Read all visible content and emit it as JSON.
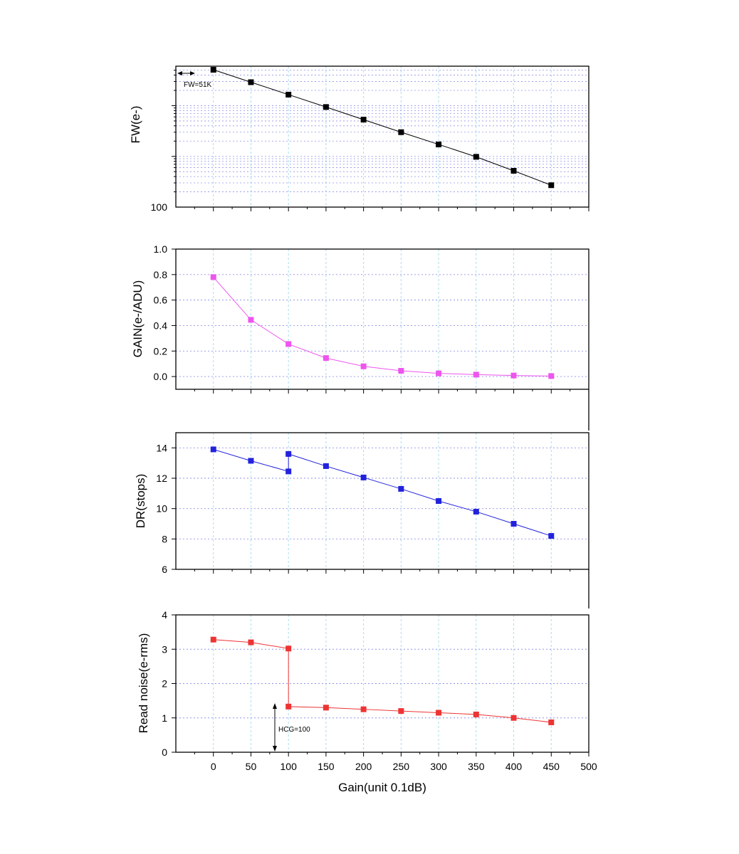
{
  "chart_data": [
    {
      "type": "line",
      "panel": "fw",
      "ylabel": "FW(e-)",
      "yscale": "log",
      "ylim": [
        100,
        60000
      ],
      "ytick_labels": [
        {
          "value": 100,
          "label": "100"
        }
      ],
      "grid": true,
      "color": "#000000",
      "x": [
        0,
        50,
        100,
        150,
        200,
        250,
        300,
        350,
        400,
        450
      ],
      "values": [
        51000,
        29000,
        16500,
        9400,
        5300,
        3000,
        1720,
        980,
        520,
        270
      ],
      "annotation": {
        "text": "FW=51K",
        "x": 0,
        "y": 51000
      }
    },
    {
      "type": "line",
      "panel": "gain",
      "ylabel": "GAIN(e-/ADU)",
      "ylim": [
        -0.1,
        1.0
      ],
      "yticks": [
        0.0,
        0.2,
        0.4,
        0.6,
        0.8,
        1.0
      ],
      "ytick_labels": [
        "0.0",
        "0.2",
        "0.4",
        "0.6",
        "0.8",
        "1.0"
      ],
      "grid": true,
      "color": "#ee55ee",
      "x": [
        0,
        50,
        100,
        150,
        200,
        250,
        300,
        350,
        400,
        450
      ],
      "values": [
        0.78,
        0.445,
        0.255,
        0.145,
        0.08,
        0.045,
        0.025,
        0.015,
        0.008,
        0.004
      ]
    },
    {
      "type": "line",
      "panel": "dr",
      "ylabel": "DR(stops)",
      "ylim": [
        6,
        15
      ],
      "yticks": [
        6,
        8,
        10,
        12,
        14
      ],
      "ytick_labels": [
        "6",
        "8",
        "10",
        "12",
        "14"
      ],
      "grid": true,
      "color": "#2222dd",
      "x": [
        0,
        50,
        100,
        100,
        150,
        200,
        250,
        300,
        350,
        400,
        450
      ],
      "values": [
        13.9,
        13.15,
        12.45,
        13.6,
        12.8,
        12.05,
        11.3,
        10.5,
        9.8,
        9.0,
        8.2
      ]
    },
    {
      "type": "line",
      "panel": "read_noise",
      "ylabel": "Read noise(e-rms)",
      "ylim": [
        0,
        4
      ],
      "yticks": [
        0,
        1,
        2,
        3,
        4
      ],
      "ytick_labels": [
        "0",
        "1",
        "2",
        "3",
        "4"
      ],
      "grid": true,
      "color": "#ee3333",
      "x": [
        0,
        50,
        100,
        100,
        150,
        200,
        250,
        300,
        350,
        400,
        450
      ],
      "values": [
        3.28,
        3.2,
        3.02,
        1.33,
        1.3,
        1.25,
        1.2,
        1.15,
        1.1,
        1.0,
        0.87
      ],
      "annotation": {
        "text": "HCG=100",
        "x": 100,
        "y": 1.33
      }
    }
  ],
  "shared_x": {
    "xlabel": "Gain(unit 0.1dB)",
    "xlim": [
      -50,
      500
    ],
    "xticks": [
      0,
      50,
      100,
      150,
      200,
      250,
      300,
      350,
      400,
      450,
      500
    ],
    "xtick_labels": [
      "0",
      "50",
      "100",
      "150",
      "200",
      "250",
      "300",
      "350",
      "400",
      "450",
      "500"
    ]
  }
}
